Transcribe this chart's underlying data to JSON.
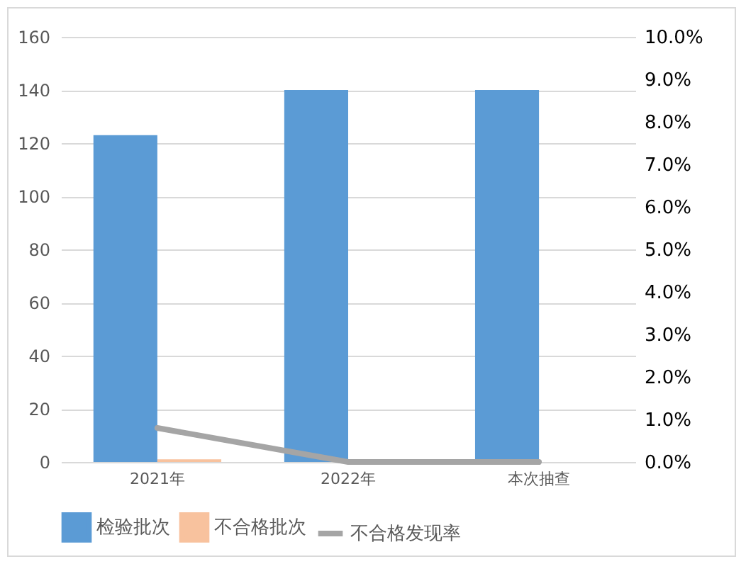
{
  "chart_data": {
    "type": "bar",
    "categories": [
      "2021年",
      "2022年",
      "本次抽查"
    ],
    "series": [
      {
        "name": "检验批次",
        "color": "#5b9bd5",
        "values": [
          123,
          140,
          140
        ]
      },
      {
        "name": "不合格批次",
        "color": "#f8c29e",
        "values": [
          1,
          0,
          0
        ]
      },
      {
        "name": "不合格发现率",
        "color": "#a5a5a5",
        "type": "line",
        "axis": "y2",
        "values": [
          0.8,
          0,
          0
        ]
      }
    ],
    "ylim": [
      0,
      160
    ],
    "yticks": [
      0,
      20,
      40,
      60,
      80,
      100,
      120,
      140,
      160
    ],
    "y2lim": [
      0,
      10
    ],
    "y2ticks": [
      {
        "value": 0,
        "label": "0.0%"
      },
      {
        "value": 1,
        "label": "1.0%"
      },
      {
        "value": 2,
        "label": "2.0%"
      },
      {
        "value": 3,
        "label": "3.0%"
      },
      {
        "value": 4,
        "label": "4.0%"
      },
      {
        "value": 5,
        "label": "5.0%"
      },
      {
        "value": 6,
        "label": "6.0%"
      },
      {
        "value": 7,
        "label": "7.0%"
      },
      {
        "value": 8,
        "label": "8.0%"
      },
      {
        "value": 9,
        "label": "9.0%"
      },
      {
        "value": 10,
        "label": "10.0%"
      }
    ],
    "grid": "y",
    "legend": "bottom",
    "marker": "none"
  }
}
